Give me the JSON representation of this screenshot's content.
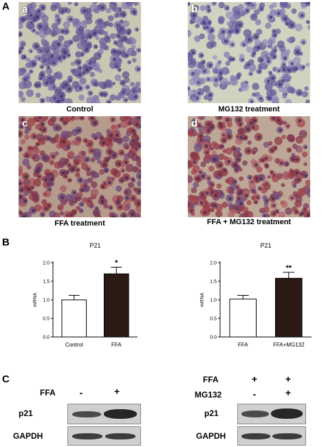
{
  "panel_letters": {
    "A": "A",
    "B": "B",
    "C": "C"
  },
  "micrographs": [
    {
      "letter": "a",
      "caption": "Control"
    },
    {
      "letter": "b",
      "caption": "MG132 treatment"
    },
    {
      "letter": "c",
      "caption": "FFA treatment"
    },
    {
      "letter": "d",
      "caption": "FFA + MG132 treatment"
    }
  ],
  "chart_data": [
    {
      "type": "bar",
      "title": "P21",
      "ylabel": "mRNA",
      "categories": [
        "Control",
        "FFA"
      ],
      "values": [
        1.0,
        1.7
      ],
      "errors": [
        0.12,
        0.18
      ],
      "significance": [
        "",
        "*"
      ],
      "yticks": [
        "0.0",
        "0.5",
        "1.0",
        "1.5",
        "2.0"
      ],
      "ylim": [
        0,
        2.0
      ],
      "bar_colors": [
        "#ffffff",
        "#2b1a14"
      ]
    },
    {
      "type": "bar",
      "title": "P21",
      "ylabel": "mRNA",
      "categories": [
        "FFA",
        "FFA+MG132"
      ],
      "values": [
        1.02,
        1.58
      ],
      "errors": [
        0.1,
        0.16
      ],
      "significance": [
        "",
        "**"
      ],
      "yticks": [
        "0.0",
        "0.5",
        "1.0",
        "1.5",
        "2.0"
      ],
      "ylim": [
        0,
        2.0
      ],
      "bar_colors": [
        "#ffffff",
        "#2b1a14"
      ]
    }
  ],
  "western_left": {
    "condition_label": "FFA",
    "signs": [
      "-",
      "+"
    ],
    "rows": [
      "p21",
      "GAPDH"
    ]
  },
  "western_right": {
    "conditions": [
      {
        "label": "FFA",
        "signs": [
          "+",
          "+"
        ]
      },
      {
        "label": "MG132",
        "signs": [
          "-",
          "+"
        ]
      }
    ],
    "rows": [
      "p21",
      "GAPDH"
    ]
  }
}
